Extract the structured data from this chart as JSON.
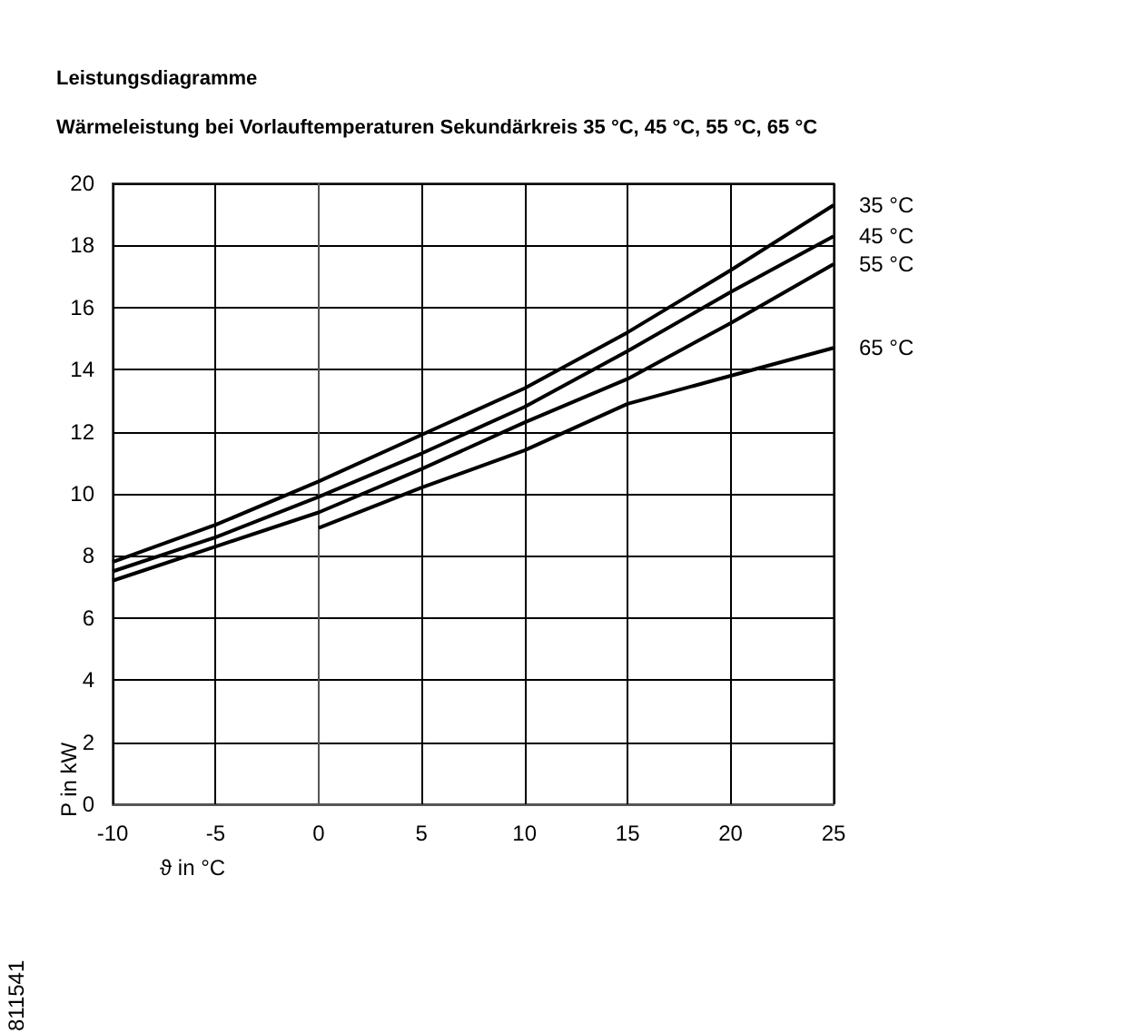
{
  "chart_data": {
    "type": "line",
    "title": "Leistungsdiagramme",
    "subtitle": "Wärmeleistung bei Vorlauftemperaturen Sekundärkreis 35 °C, 45 °C, 55 °C, 65 °C",
    "xlabel": "ϑ in °C",
    "ylabel": "P in kW",
    "annotations": [
      "811541"
    ],
    "xlim": [
      -10,
      25
    ],
    "xticks": [
      -10,
      -5,
      0,
      5,
      10,
      15,
      20,
      25
    ],
    "ylim": [
      0,
      20
    ],
    "yticks": [
      0,
      2,
      4,
      6,
      8,
      10,
      12,
      14,
      16,
      18,
      20
    ],
    "grid": true,
    "legend": false,
    "marker": "none",
    "line_style": "solid",
    "series": [
      {
        "name": "35 °C",
        "color": "#000000",
        "x": [
          -10,
          -5,
          0,
          5,
          10,
          15,
          20,
          25
        ],
        "values": [
          7.8,
          9.0,
          10.4,
          11.9,
          13.4,
          15.2,
          17.2,
          19.3
        ]
      },
      {
        "name": "45 °C",
        "color": "#000000",
        "x": [
          -10,
          -5,
          0,
          5,
          10,
          15,
          20,
          25
        ],
        "values": [
          7.5,
          8.6,
          9.9,
          11.3,
          12.8,
          14.6,
          16.5,
          18.3
        ]
      },
      {
        "name": "55 °C",
        "color": "#000000",
        "x": [
          -10,
          -5,
          0,
          5,
          10,
          15,
          20,
          25
        ],
        "values": [
          7.2,
          8.3,
          9.4,
          10.8,
          12.3,
          13.7,
          15.5,
          17.4
        ]
      },
      {
        "name": "65 °C",
        "color": "#000000",
        "x": [
          0,
          5,
          10,
          15,
          20,
          25
        ],
        "values": [
          8.9,
          10.2,
          11.4,
          12.9,
          13.8,
          14.7
        ]
      }
    ]
  }
}
